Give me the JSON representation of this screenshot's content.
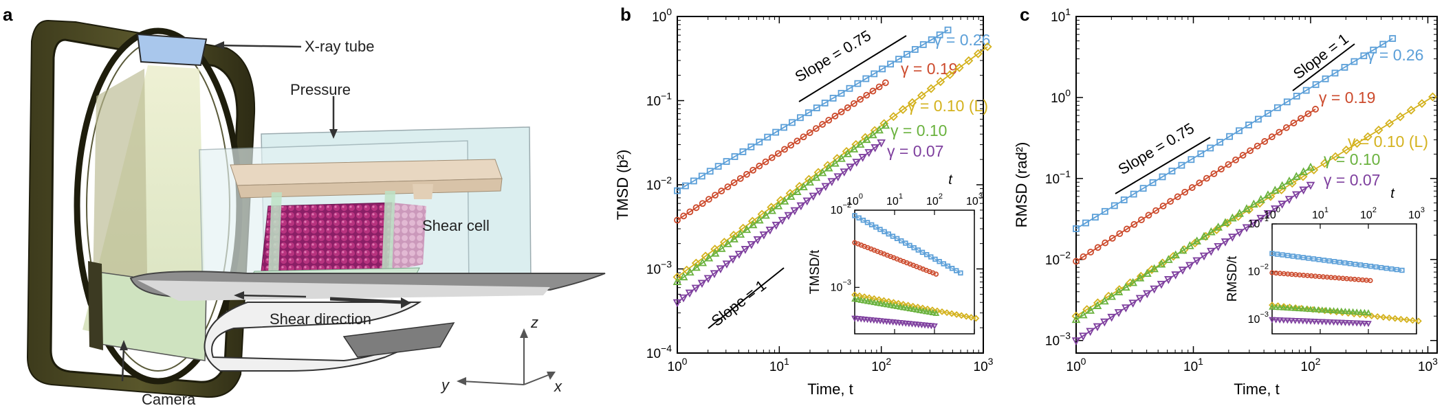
{
  "panel_a": {
    "label": "a",
    "annotations": {
      "xray": "X-ray tube",
      "pressure": "Pressure",
      "shear_cell": "Shear cell",
      "shear_direction": "Shear direction",
      "camera": "Camera"
    },
    "axes_labels": {
      "z": "z",
      "y": "y",
      "x": "x"
    }
  },
  "colors": {
    "blue": "#5b9fd8",
    "red": "#cc4a2c",
    "yellow": "#d4b21e",
    "green": "#6ab23e",
    "purple": "#7e3f9e"
  },
  "chart_data": [
    {
      "panel_label": "b",
      "type": "line",
      "xscale": "log",
      "yscale": "log",
      "xlim": [
        1,
        1000
      ],
      "ylim": [
        0.0001,
        1
      ],
      "xlabel": "Time, t",
      "ylabel": "TMSD (b²)",
      "xticks": [
        "10^0",
        "10^1",
        "10^2",
        "10^3"
      ],
      "yticks": [
        "10^-4",
        "10^-3",
        "10^-2",
        "10^-1",
        "10^0"
      ],
      "series": [
        {
          "name": "γ = 0.26",
          "color": "#5b9fd8",
          "marker": "square",
          "xend": 450,
          "A": 0.0085,
          "p": 0.72
        },
        {
          "name": "γ = 0.19",
          "color": "#cc4a2c",
          "marker": "circle",
          "xend": 110,
          "A": 0.0038,
          "p": 0.8
        },
        {
          "name": "γ = 0.10 (L)",
          "color": "#d4b21e",
          "marker": "diamond",
          "xend": 1100,
          "A": 0.0008,
          "p": 0.9
        },
        {
          "name": "γ = 0.10",
          "color": "#6ab23e",
          "marker": "triangle-up",
          "xend": 110,
          "A": 0.0007,
          "p": 0.91
        },
        {
          "name": "γ = 0.07",
          "color": "#7e3f9e",
          "marker": "triangle-down",
          "xend": 100,
          "A": 0.0004,
          "p": 0.95
        }
      ],
      "slope_lines": [
        {
          "label": "Slope = 0.75"
        },
        {
          "label": "Slope = 1"
        }
      ],
      "inset": {
        "ylabel": "TMSD/t",
        "xlabel_top": "t",
        "xlim": [
          1,
          1000
        ],
        "ylim": [
          0.00025,
          0.01
        ],
        "xticks": [
          "10^0",
          "10^1",
          "10^2",
          "10^3"
        ],
        "yticks": [
          "10^-3",
          "10^-2"
        ],
        "series": [
          {
            "color": "#5b9fd8",
            "marker": "square",
            "x0": 1,
            "x1": 450,
            "A": 0.0085,
            "p": 0.72
          },
          {
            "color": "#cc4a2c",
            "marker": "circle",
            "x0": 1,
            "x1": 110,
            "A": 0.0038,
            "p": 0.8
          },
          {
            "color": "#d4b21e",
            "marker": "diamond",
            "x0": 1,
            "x1": 1100,
            "A": 0.0008,
            "p": 0.9
          },
          {
            "color": "#6ab23e",
            "marker": "triangle-up",
            "x0": 1,
            "x1": 110,
            "A": 0.0007,
            "p": 0.91
          },
          {
            "color": "#7e3f9e",
            "marker": "triangle-down",
            "x0": 1,
            "x1": 100,
            "A": 0.0004,
            "p": 0.95
          }
        ]
      }
    },
    {
      "panel_label": "c",
      "type": "line",
      "xscale": "log",
      "yscale": "log",
      "xlim": [
        1,
        1200
      ],
      "ylim": [
        0.0007,
        10
      ],
      "xlabel": "Time, t",
      "ylabel": "RMSD (rad²)",
      "xticks": [
        "10^0",
        "10^1",
        "10^2",
        "10^3"
      ],
      "yticks": [
        "10^-3",
        "10^-2",
        "10^-1",
        "10^0",
        "10^1"
      ],
      "series": [
        {
          "name": "γ = 0.26",
          "color": "#5b9fd8",
          "marker": "square",
          "xend": 500,
          "A": 0.024,
          "p": 0.87
        },
        {
          "name": "γ = 0.19",
          "color": "#cc4a2c",
          "marker": "circle",
          "xend": 110,
          "A": 0.0095,
          "p": 0.92
        },
        {
          "name": "γ = 0.10 (L)",
          "color": "#d4b21e",
          "marker": "diamond",
          "xend": 1100,
          "A": 0.002,
          "p": 0.89
        },
        {
          "name": "γ = 0.10",
          "color": "#6ab23e",
          "marker": "triangle-up",
          "xend": 100,
          "A": 0.0018,
          "p": 0.94
        },
        {
          "name": "γ = 0.07",
          "color": "#7e3f9e",
          "marker": "triangle-down",
          "xend": 100,
          "A": 0.001,
          "p": 0.96
        }
      ],
      "slope_lines": [
        {
          "label": "Slope = 0.75"
        },
        {
          "label": "Slope = 1"
        }
      ],
      "inset": {
        "ylabel": "RMSD/t",
        "xlabel_top": "t",
        "xlim": [
          1,
          1000
        ],
        "ylim": [
          0.0005,
          0.1
        ],
        "xticks": [
          "10^0",
          "10^1",
          "10^2",
          "10^3"
        ],
        "yticks": [
          "10^-3",
          "10^-2",
          "10^-1"
        ],
        "series": [
          {
            "color": "#5b9fd8",
            "marker": "square",
            "x0": 1,
            "x1": 500,
            "A": 0.024,
            "p": 0.87
          },
          {
            "color": "#cc4a2c",
            "marker": "circle",
            "x0": 1,
            "x1": 110,
            "A": 0.0095,
            "p": 0.92
          },
          {
            "color": "#d4b21e",
            "marker": "diamond",
            "x0": 1,
            "x1": 1100,
            "A": 0.002,
            "p": 0.89
          },
          {
            "color": "#6ab23e",
            "marker": "triangle-up",
            "x0": 1,
            "x1": 100,
            "A": 0.0018,
            "p": 0.94
          },
          {
            "color": "#7e3f9e",
            "marker": "triangle-down",
            "x0": 1,
            "x1": 100,
            "A": 0.001,
            "p": 0.96
          }
        ]
      }
    }
  ]
}
